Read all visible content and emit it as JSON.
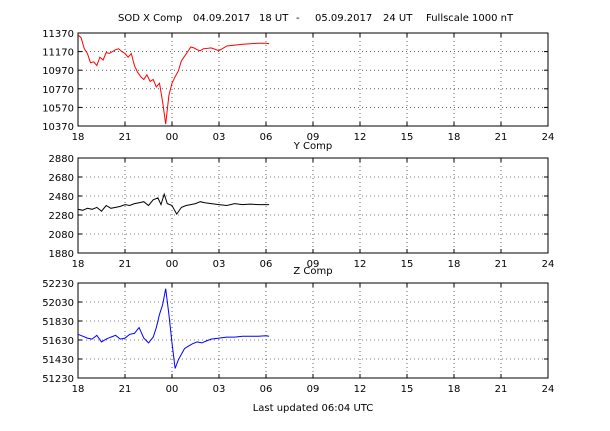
{
  "header": {
    "station": "SOD X Comp",
    "start_date": "04.09.2017",
    "start_time": "18 UT",
    "separator": "-",
    "end_date": "05.09.2017",
    "end_time": "24 UT",
    "fullscale": "Fullscale 1000 nT"
  },
  "footer": {
    "updated": "Last updated  06:04 UTC"
  },
  "x_ticks": [
    "18",
    "21",
    "00",
    "03",
    "06",
    "09",
    "12",
    "15",
    "18",
    "21",
    "24"
  ],
  "chart_data": [
    {
      "type": "line",
      "title": "",
      "xlabel": "",
      "ylabel": "",
      "xlim": [
        18,
        48
      ],
      "ylim": [
        10370,
        11370
      ],
      "yticks": [
        11370,
        11170,
        10970,
        10770,
        10570,
        10370
      ],
      "grid": true,
      "color": "#ff0000",
      "x": [
        18.0,
        18.2,
        18.4,
        18.6,
        18.8,
        19.0,
        19.2,
        19.4,
        19.6,
        19.8,
        20.0,
        20.2,
        20.4,
        20.6,
        20.8,
        21.0,
        21.2,
        21.4,
        21.6,
        21.8,
        22.0,
        22.2,
        22.4,
        22.6,
        22.8,
        23.0,
        23.2,
        23.4,
        23.6,
        23.8,
        24.0,
        24.2,
        24.4,
        24.6,
        24.8,
        25.0,
        25.2,
        25.4,
        25.6,
        25.8,
        26.0,
        26.5,
        27.0,
        27.5,
        28.0,
        28.5,
        29.0,
        29.5,
        30.0,
        30.2
      ],
      "values": [
        11350,
        11320,
        11200,
        11150,
        11050,
        11060,
        11020,
        11110,
        11080,
        11160,
        11150,
        11170,
        11190,
        11200,
        11170,
        11150,
        11110,
        11150,
        11020,
        10950,
        10900,
        10870,
        10920,
        10850,
        10870,
        10790,
        10830,
        10630,
        10390,
        10700,
        10830,
        10900,
        10960,
        11070,
        11120,
        11170,
        11220,
        11210,
        11190,
        11180,
        11200,
        11210,
        11180,
        11230,
        11240,
        11250,
        11255,
        11260,
        11260,
        11255
      ]
    },
    {
      "type": "line",
      "title": "Y Comp",
      "xlabel": "",
      "ylabel": "",
      "xlim": [
        18,
        48
      ],
      "ylim": [
        1880,
        2880
      ],
      "yticks": [
        2880,
        2680,
        2480,
        2280,
        2080,
        1880
      ],
      "grid": true,
      "color": "#000000",
      "x": [
        18.0,
        18.3,
        18.6,
        18.9,
        19.2,
        19.5,
        19.8,
        20.1,
        20.4,
        20.7,
        21.0,
        21.3,
        21.6,
        21.9,
        22.2,
        22.5,
        22.8,
        23.1,
        23.3,
        23.5,
        23.7,
        24.0,
        24.3,
        24.6,
        24.9,
        25.2,
        25.5,
        25.8,
        26.1,
        26.5,
        27.0,
        27.5,
        28.0,
        28.5,
        29.0,
        29.5,
        30.0,
        30.2
      ],
      "values": [
        2340,
        2330,
        2350,
        2340,
        2360,
        2320,
        2380,
        2350,
        2360,
        2370,
        2390,
        2380,
        2400,
        2410,
        2420,
        2380,
        2440,
        2460,
        2390,
        2500,
        2400,
        2380,
        2290,
        2360,
        2380,
        2390,
        2400,
        2420,
        2410,
        2400,
        2390,
        2380,
        2400,
        2390,
        2395,
        2390,
        2390,
        2390
      ]
    },
    {
      "type": "line",
      "title": "Z Comp",
      "xlabel": "",
      "ylabel": "",
      "xlim": [
        18,
        48
      ],
      "ylim": [
        51230,
        52230
      ],
      "yticks": [
        52230,
        52030,
        51830,
        51630,
        51430,
        51230
      ],
      "grid": true,
      "color": "#0000ff",
      "x": [
        18.0,
        18.3,
        18.6,
        18.9,
        19.2,
        19.5,
        19.8,
        20.1,
        20.4,
        20.7,
        21.0,
        21.3,
        21.6,
        21.9,
        22.2,
        22.5,
        22.8,
        23.0,
        23.2,
        23.4,
        23.6,
        23.8,
        24.0,
        24.2,
        24.4,
        24.6,
        24.8,
        25.0,
        25.3,
        25.6,
        25.9,
        26.2,
        26.5,
        27.0,
        27.5,
        28.0,
        28.5,
        29.0,
        29.5,
        30.0,
        30.2
      ],
      "values": [
        51690,
        51670,
        51650,
        51640,
        51680,
        51610,
        51640,
        51660,
        51680,
        51640,
        51650,
        51690,
        51700,
        51760,
        51650,
        51600,
        51660,
        51760,
        51900,
        52000,
        52170,
        51900,
        51600,
        51330,
        51420,
        51480,
        51540,
        51560,
        51590,
        51610,
        51600,
        51620,
        51640,
        51650,
        51660,
        51660,
        51670,
        51670,
        51670,
        51675,
        51670
      ]
    }
  ]
}
